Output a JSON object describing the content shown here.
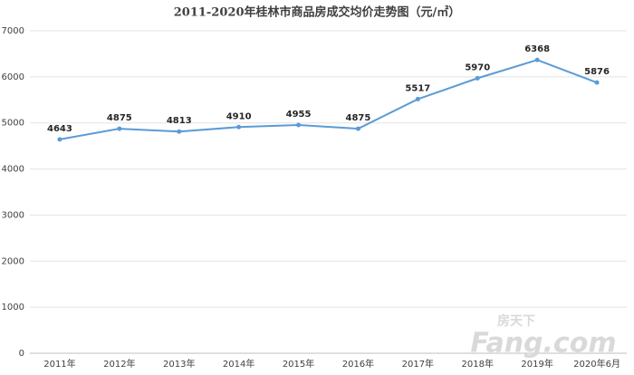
{
  "chart_data": {
    "type": "line",
    "title": "2011-2020年桂林市商品房成交均价走势图（元/㎡）",
    "categories": [
      "2011年",
      "2012年",
      "2013年",
      "2014年",
      "2015年",
      "2016年",
      "2017年",
      "2018年",
      "2019年",
      "2020年6月"
    ],
    "series": [
      {
        "name": "成交均价",
        "color": "#5b9bd5",
        "values": [
          4643,
          4875,
          4813,
          4910,
          4955,
          4875,
          5517,
          5970,
          6368,
          5876
        ]
      }
    ],
    "ylim": [
      0,
      7000
    ],
    "yticks": [
      0,
      1000,
      2000,
      3000,
      4000,
      5000,
      6000,
      7000
    ],
    "grid": true,
    "watermark": [
      "Fang.com",
      "房天下"
    ]
  }
}
